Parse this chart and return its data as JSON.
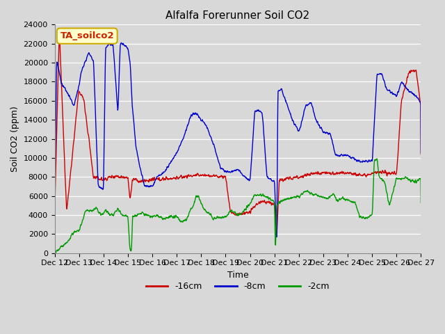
{
  "title": "Alfalfa Forerunner Soil CO2",
  "xlabel": "Time",
  "ylabel": "Soil CO2 (ppm)",
  "ylim": [
    0,
    24000
  ],
  "yticks": [
    0,
    2000,
    4000,
    6000,
    8000,
    10000,
    12000,
    14000,
    16000,
    18000,
    20000,
    22000,
    24000
  ],
  "xtick_labels": [
    "Dec 12",
    "Dec 13",
    "Dec 14",
    "Dec 15",
    "Dec 16",
    "Dec 17",
    "Dec 18",
    "Dec 19",
    "Dec 20",
    "Dec 21",
    "Dec 22",
    "Dec 23",
    "Dec 24",
    "Dec 25",
    "Dec 26",
    "Dec 27"
  ],
  "legend_labels": [
    "-16cm",
    "-8cm",
    "-2cm"
  ],
  "line_colors": [
    "#cc0000",
    "#0000cc",
    "#009900"
  ],
  "bg_color": "#d8d8d8",
  "plot_bg_color": "#d8d8d8",
  "annotation_text": "TA_soilco2",
  "annotation_bg": "#ffffcc",
  "annotation_border": "#ccaa00",
  "title_fontsize": 11,
  "axis_label_fontsize": 9,
  "tick_fontsize": 8
}
